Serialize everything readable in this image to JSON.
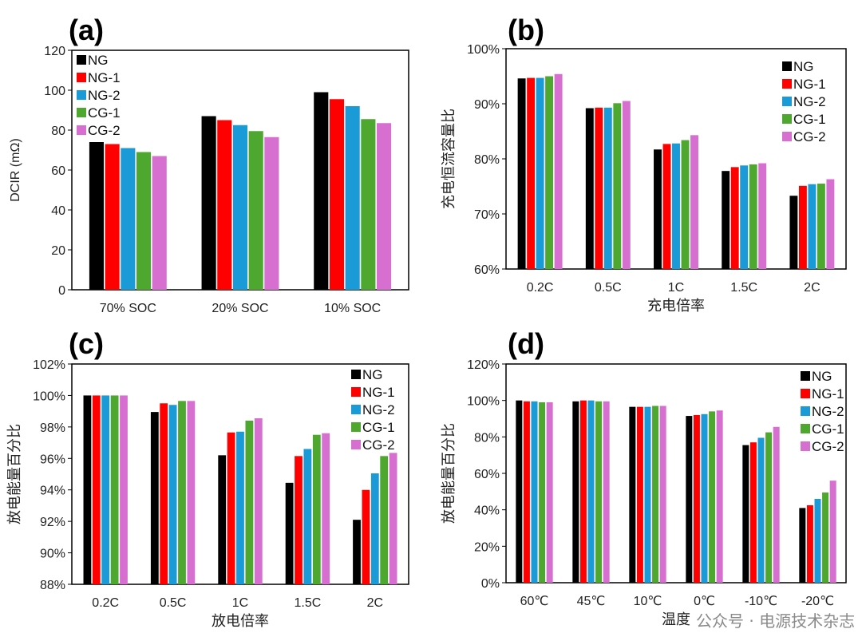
{
  "colors": {
    "NG": "#000000",
    "NG-1": "#ff0000",
    "NG-2": "#1a9ad6",
    "CG-1": "#4ea72e",
    "CG-2": "#d66fd0"
  },
  "watermark": "公众号 · 电源技术杂志",
  "chart_data": [
    {
      "type": "bar",
      "panel_label": "(a)",
      "ylabel": "DCIR (mΩ)",
      "xlabel": "",
      "ylim": [
        0,
        120
      ],
      "ytick_step": 20,
      "percent": false,
      "legend": "top-left",
      "categories": [
        "70% SOC",
        "20% SOC",
        "10% SOC"
      ],
      "series": [
        {
          "name": "NG",
          "values": [
            74,
            87,
            99
          ]
        },
        {
          "name": "NG-1",
          "values": [
            73,
            85,
            95.5
          ]
        },
        {
          "name": "NG-2",
          "values": [
            71,
            82.5,
            92
          ]
        },
        {
          "name": "CG-1",
          "values": [
            69,
            79.5,
            85.5
          ]
        },
        {
          "name": "CG-2",
          "values": [
            67,
            76.5,
            83.5
          ]
        }
      ]
    },
    {
      "type": "bar",
      "panel_label": "(b)",
      "ylabel": "充电恒流容量比",
      "xlabel": "充电倍率",
      "ylim": [
        60,
        100
      ],
      "ytick_step": 10,
      "percent": true,
      "legend": "top-right",
      "categories": [
        "0.2C",
        "0.5C",
        "1C",
        "1.5C",
        "2C"
      ],
      "series": [
        {
          "name": "NG",
          "values": [
            94.6,
            89.2,
            81.7,
            77.8,
            73.3
          ]
        },
        {
          "name": "NG-1",
          "values": [
            94.7,
            89.3,
            82.7,
            78.5,
            75.1
          ]
        },
        {
          "name": "NG-2",
          "values": [
            94.7,
            89.3,
            82.8,
            78.8,
            75.4
          ]
        },
        {
          "name": "CG-1",
          "values": [
            95.0,
            90.1,
            83.4,
            79.0,
            75.5
          ]
        },
        {
          "name": "CG-2",
          "values": [
            95.4,
            90.5,
            84.3,
            79.2,
            76.3
          ]
        }
      ]
    },
    {
      "type": "bar",
      "panel_label": "(c)",
      "ylabel": "放电能量百分比",
      "xlabel": "放电倍率",
      "ylim": [
        88,
        102
      ],
      "ytick_step": 2,
      "percent": true,
      "legend": "top-right",
      "categories": [
        "0.2C",
        "0.5C",
        "1C",
        "1.5C",
        "2C"
      ],
      "series": [
        {
          "name": "NG",
          "values": [
            100,
            98.95,
            96.2,
            94.45,
            92.1
          ]
        },
        {
          "name": "NG-1",
          "values": [
            100,
            99.5,
            97.65,
            96.15,
            94.0
          ]
        },
        {
          "name": "NG-2",
          "values": [
            100,
            99.4,
            97.7,
            96.6,
            95.05
          ]
        },
        {
          "name": "CG-1",
          "values": [
            100,
            99.65,
            98.4,
            97.5,
            96.15
          ]
        },
        {
          "name": "CG-2",
          "values": [
            100,
            99.65,
            98.55,
            97.6,
            96.35
          ]
        }
      ]
    },
    {
      "type": "bar",
      "panel_label": "(d)",
      "ylabel": "放电能量百分比",
      "xlabel": "温度",
      "ylim": [
        0,
        120
      ],
      "ytick_step": 20,
      "percent": true,
      "legend": "top-right",
      "categories": [
        "60℃",
        "45℃",
        "10℃",
        "0℃",
        "-10℃",
        "-20℃"
      ],
      "series": [
        {
          "name": "NG",
          "values": [
            100,
            99.5,
            96.5,
            91.5,
            75.5,
            41
          ]
        },
        {
          "name": "NG-1",
          "values": [
            99.5,
            100,
            96.5,
            92,
            77,
            42.5
          ]
        },
        {
          "name": "NG-2",
          "values": [
            99.5,
            100,
            96.5,
            92.5,
            79.5,
            46
          ]
        },
        {
          "name": "CG-1",
          "values": [
            99,
            99.5,
            97,
            94,
            82.5,
            49.5
          ]
        },
        {
          "name": "CG-2",
          "values": [
            99,
            99.5,
            97,
            94.5,
            85.5,
            56
          ]
        }
      ]
    }
  ]
}
